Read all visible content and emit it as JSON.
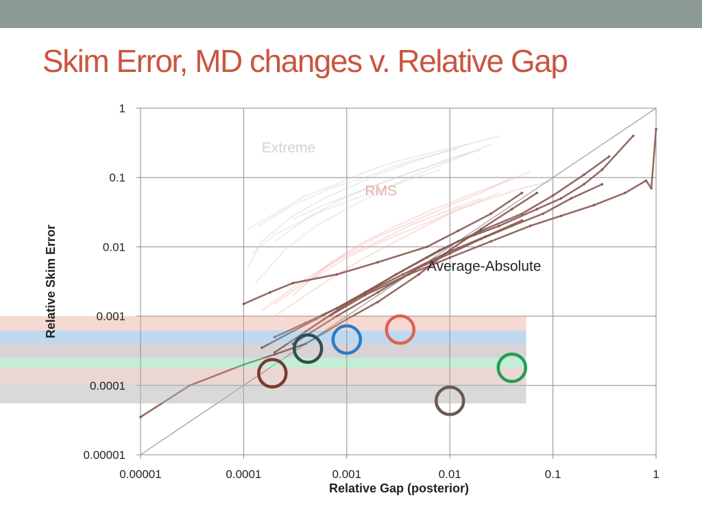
{
  "slide": {
    "title": "Skim Error, MD changes v. Relative Gap",
    "accent_color": "#c9553f",
    "top_bar_color": "#8c9b94"
  },
  "chart_data": {
    "type": "line",
    "title": "",
    "xlabel": "Relative Gap (posterior)",
    "ylabel": "Relative Skim Error",
    "xscale": "log",
    "yscale": "log",
    "xlim": [
      1e-05,
      1
    ],
    "ylim": [
      1e-05,
      1
    ],
    "x_ticks": [
      "0.00001",
      "0.0001",
      "0.001",
      "0.01",
      "0.1",
      "1"
    ],
    "y_ticks": [
      "0.00001",
      "0.0001",
      "0.001",
      "0.01",
      "0.1",
      "1"
    ],
    "grid": true,
    "reference_line": {
      "name": "y = x",
      "x": [
        1e-05,
        1
      ],
      "y": [
        1e-05,
        1
      ],
      "color": "#999999"
    },
    "series_labels": [
      {
        "text": "Extreme",
        "x": 0.00015,
        "y": 0.23,
        "color": "#cfd3d1"
      },
      {
        "text": "RMS",
        "x": 0.0015,
        "y": 0.055,
        "color": "#e8b0a6"
      },
      {
        "text": "Average-Absolute",
        "x": 0.006,
        "y": 0.0045,
        "color": "#222222"
      }
    ],
    "series": [
      {
        "group": "extreme",
        "color": "#c9cecb",
        "opacity": 0.35,
        "x": [
          0.00011,
          0.0002,
          0.0004,
          0.0008,
          0.0015,
          0.003,
          0.006,
          0.012,
          0.02,
          0.03
        ],
        "y": [
          0.018,
          0.03,
          0.055,
          0.08,
          0.12,
          0.17,
          0.22,
          0.28,
          0.34,
          0.4
        ]
      },
      {
        "group": "extreme",
        "color": "#c9cecb",
        "opacity": 0.35,
        "x": [
          0.00011,
          0.00015,
          0.0003,
          0.0006,
          0.001,
          0.002,
          0.005,
          0.01,
          0.015
        ],
        "y": [
          0.005,
          0.012,
          0.028,
          0.05,
          0.07,
          0.11,
          0.18,
          0.25,
          0.3
        ]
      },
      {
        "group": "extreme",
        "color": "#c9cecb",
        "opacity": 0.35,
        "x": [
          0.00013,
          0.00025,
          0.0005,
          0.001,
          0.002,
          0.004,
          0.008,
          0.015
        ],
        "y": [
          0.003,
          0.009,
          0.02,
          0.035,
          0.06,
          0.1,
          0.15,
          0.22
        ]
      },
      {
        "group": "extreme",
        "color": "#c9cecb",
        "opacity": 0.35,
        "x": [
          0.0002,
          0.0004,
          0.0008,
          0.0016,
          0.003,
          0.006,
          0.01,
          0.02
        ],
        "y": [
          0.012,
          0.025,
          0.045,
          0.07,
          0.1,
          0.14,
          0.19,
          0.25
        ]
      },
      {
        "group": "extreme",
        "color": "#c9cecb",
        "opacity": 0.35,
        "x": [
          0.00014,
          0.0003,
          0.0007,
          0.0015,
          0.003,
          0.006,
          0.012
        ],
        "y": [
          0.02,
          0.04,
          0.07,
          0.1,
          0.15,
          0.2,
          0.26
        ]
      },
      {
        "group": "extreme",
        "color": "#c9cecb",
        "opacity": 0.35,
        "x": [
          0.0003,
          0.0006,
          0.0012,
          0.0025,
          0.005,
          0.01,
          0.025
        ],
        "y": [
          0.025,
          0.04,
          0.06,
          0.09,
          0.13,
          0.18,
          0.3
        ]
      },
      {
        "group": "extreme",
        "color": "#c9cecb",
        "opacity": 0.35,
        "x": [
          0.00012,
          0.0002,
          0.0005,
          0.001,
          0.003,
          0.008
        ],
        "y": [
          0.008,
          0.015,
          0.03,
          0.045,
          0.08,
          0.13
        ]
      },
      {
        "group": "rms",
        "color": "#eebcb2",
        "opacity": 0.4,
        "x": [
          0.0002,
          0.0005,
          0.001,
          0.002,
          0.005,
          0.01,
          0.02,
          0.04
        ],
        "y": [
          0.0015,
          0.004,
          0.008,
          0.014,
          0.025,
          0.04,
          0.06,
          0.1
        ]
      },
      {
        "group": "rms",
        "color": "#eebcb2",
        "opacity": 0.4,
        "x": [
          0.0003,
          0.0007,
          0.0015,
          0.003,
          0.007,
          0.015,
          0.03,
          0.06
        ],
        "y": [
          0.002,
          0.006,
          0.012,
          0.02,
          0.035,
          0.055,
          0.08,
          0.12
        ]
      },
      {
        "group": "rms",
        "color": "#eebcb2",
        "opacity": 0.4,
        "x": [
          0.00015,
          0.0004,
          0.0009,
          0.002,
          0.004,
          0.009,
          0.02
        ],
        "y": [
          0.0012,
          0.0035,
          0.007,
          0.012,
          0.02,
          0.032,
          0.05
        ]
      },
      {
        "group": "rms",
        "color": "#eebcb2",
        "opacity": 0.4,
        "x": [
          0.0004,
          0.001,
          0.0025,
          0.006,
          0.012,
          0.025,
          0.05,
          0.1
        ],
        "y": [
          0.003,
          0.007,
          0.013,
          0.022,
          0.035,
          0.05,
          0.07,
          0.09
        ]
      },
      {
        "group": "rms",
        "color": "#eebcb2",
        "opacity": 0.4,
        "x": [
          0.0002,
          0.0006,
          0.0015,
          0.004,
          0.01,
          0.03
        ],
        "y": [
          0.001,
          0.003,
          0.007,
          0.015,
          0.03,
          0.06
        ]
      },
      {
        "group": "average",
        "color": "#8a5a52",
        "opacity": 0.9,
        "x": [
          1e-05,
          3e-05,
          0.0001,
          0.0002,
          0.0004,
          0.001,
          0.002,
          0.005,
          0.01,
          0.02,
          0.04,
          0.07
        ],
        "y": [
          3.5e-05,
          0.0001,
          0.0002,
          0.00028,
          0.0004,
          0.0009,
          0.0016,
          0.004,
          0.009,
          0.018,
          0.035,
          0.06
        ]
      },
      {
        "group": "average",
        "color": "#8a5a52",
        "opacity": 0.9,
        "x": [
          0.0002,
          0.0004,
          0.0008,
          0.0015,
          0.003,
          0.006,
          0.012,
          0.03,
          0.07,
          0.12,
          0.2,
          0.3,
          0.6
        ],
        "y": [
          0.0005,
          0.0008,
          0.0013,
          0.0022,
          0.004,
          0.007,
          0.012,
          0.02,
          0.035,
          0.05,
          0.08,
          0.13,
          0.4
        ]
      },
      {
        "group": "average",
        "color": "#8a5a52",
        "opacity": 0.9,
        "x": [
          0.0003,
          0.0008,
          0.002,
          0.005,
          0.01,
          0.02,
          0.04,
          0.08,
          0.15,
          0.3
        ],
        "y": [
          0.0004,
          0.001,
          0.0022,
          0.005,
          0.008,
          0.013,
          0.02,
          0.03,
          0.05,
          0.08
        ]
      },
      {
        "group": "average",
        "color": "#8a5a52",
        "opacity": 0.9,
        "x": [
          0.0001,
          0.00018,
          0.0003,
          0.0008,
          0.002,
          0.006,
          0.012,
          0.025,
          0.05
        ],
        "y": [
          0.0015,
          0.0022,
          0.003,
          0.004,
          0.006,
          0.01,
          0.017,
          0.03,
          0.06
        ]
      },
      {
        "group": "average",
        "color": "#8a5a52",
        "opacity": 0.9,
        "x": [
          0.0002,
          0.0006,
          0.0015,
          0.004,
          0.01,
          0.025,
          0.06,
          0.12,
          0.25,
          0.5,
          0.8,
          0.9,
          1.0
        ],
        "y": [
          0.0003,
          0.0009,
          0.002,
          0.004,
          0.007,
          0.012,
          0.02,
          0.028,
          0.04,
          0.06,
          0.09,
          0.07,
          0.5
        ]
      },
      {
        "group": "average",
        "color": "#8a5a52",
        "opacity": 0.9,
        "x": [
          0.0004,
          0.001,
          0.003,
          0.008,
          0.02,
          0.05,
          0.1,
          0.2,
          0.35
        ],
        "y": [
          0.0006,
          0.0015,
          0.004,
          0.009,
          0.017,
          0.03,
          0.055,
          0.11,
          0.2
        ]
      },
      {
        "group": "average",
        "color": "#8a5a52",
        "opacity": 0.9,
        "x": [
          0.00015,
          0.0005,
          0.0012,
          0.0035,
          0.009,
          0.022,
          0.05
        ],
        "y": [
          0.00035,
          0.0009,
          0.0018,
          0.004,
          0.008,
          0.014,
          0.024
        ]
      }
    ],
    "bands": [
      {
        "color": "#e9a092",
        "opacity": 0.4,
        "y": [
          0.00062,
          0.001
        ],
        "x_end": 0.055
      },
      {
        "color": "#6fa8dc",
        "opacity": 0.45,
        "y": [
          0.0004,
          0.00062
        ],
        "x_end": 0.055
      },
      {
        "color": "#7c6c78",
        "opacity": 0.3,
        "y": [
          0.00025,
          0.0004
        ],
        "x_end": 0.055
      },
      {
        "color": "#7ad6a0",
        "opacity": 0.45,
        "y": [
          0.00018,
          0.00025
        ],
        "x_end": 0.055
      },
      {
        "color": "#c98a7a",
        "opacity": 0.35,
        "y": [
          0.000105,
          0.00018
        ],
        "x_end": 0.055
      },
      {
        "color": "#b3b3b3",
        "opacity": 0.5,
        "y": [
          5.5e-05,
          0.000105
        ],
        "x_end": 0.055
      }
    ],
    "markers": [
      {
        "x": 0.0033,
        "y": 0.00064,
        "color": "#e06050"
      },
      {
        "x": 0.001,
        "y": 0.00046,
        "color": "#2e7bc4"
      },
      {
        "x": 0.00042,
        "y": 0.00034,
        "color": "#2e5048"
      },
      {
        "x": 0.00019,
        "y": 0.00015,
        "color": "#7a3a30"
      },
      {
        "x": 0.04,
        "y": 0.00018,
        "color": "#1f9e55"
      },
      {
        "x": 0.01,
        "y": 6e-05,
        "color": "#6a5a54"
      }
    ]
  }
}
